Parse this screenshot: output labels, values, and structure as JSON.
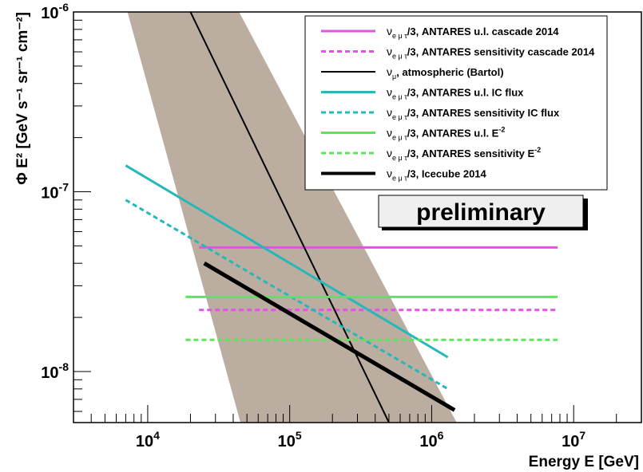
{
  "chart_data": {
    "type": "line",
    "xlabel": "Energy E [GeV]",
    "ylabel": "Φ E² [GeV s⁻¹ sr⁻¹ cm⁻²]",
    "xscale": "log",
    "yscale": "log",
    "xlim": [
      3000,
      30000000
    ],
    "ylim": [
      5.2e-09,
      1e-06
    ],
    "x_ticks": [
      {
        "value": 10000,
        "base": "10",
        "exp": "4"
      },
      {
        "value": 100000,
        "base": "10",
        "exp": "5"
      },
      {
        "value": 1000000,
        "base": "10",
        "exp": "6"
      },
      {
        "value": 10000000,
        "base": "10",
        "exp": "7"
      }
    ],
    "y_ticks": [
      {
        "value": 1e-08,
        "base": "10",
        "exp": "-8"
      },
      {
        "value": 1e-07,
        "base": "10",
        "exp": "-7"
      },
      {
        "value": 1e-06,
        "base": "10",
        "exp": "-6"
      }
    ],
    "grid": false,
    "legend_position": "top-right",
    "band": {
      "label": "atmospheric (Bartol) uncertainty band",
      "color": "#bcada1",
      "left_edge": [
        [
          7200,
          1e-06
        ],
        [
          45000,
          5.2e-09
        ]
      ],
      "right_edge": [
        [
          44000,
          1e-06
        ],
        [
          1500000,
          5.2e-09
        ]
      ]
    },
    "series": [
      {
        "legend_nu": "ν",
        "legend_sub": "e μ τ",
        "legend_rest": "/3, ANTARES u.l. cascade 2014",
        "legend_sup": "",
        "legend_after": "",
        "color": "#e650e6",
        "dash": "solid",
        "width": 3,
        "x": [
          23000,
          7700000
        ],
        "y": [
          4.9e-08,
          4.9e-08
        ]
      },
      {
        "legend_nu": "ν",
        "legend_sub": "e μ τ",
        "legend_rest": "/3, ANTARES sensitivity cascade 2014",
        "legend_sup": "",
        "legend_after": "",
        "color": "#e650e6",
        "dash": "dotted",
        "width": 3,
        "x": [
          23000,
          7700000
        ],
        "y": [
          2.2e-08,
          2.2e-08
        ]
      },
      {
        "legend_nu": "ν",
        "legend_sub": "μ",
        "legend_rest": ", atmospheric (Bartol)",
        "legend_sup": "",
        "legend_after": "",
        "color": "#000000",
        "dash": "solid",
        "width": 2,
        "x": [
          20000,
          500000
        ],
        "y": [
          1e-06,
          5.2e-09
        ]
      },
      {
        "legend_nu": "ν",
        "legend_sub": "e μ τ",
        "legend_rest": "/3, ANTARES u.l. IC flux",
        "legend_sup": "",
        "legend_after": "",
        "color": "#26b8b8",
        "dash": "solid",
        "width": 3,
        "x": [
          7000,
          1300000
        ],
        "y": [
          1.4e-07,
          1.2e-08
        ]
      },
      {
        "legend_nu": "ν",
        "legend_sub": "e μ τ",
        "legend_rest": "/3, ANTARES sensitivity IC flux",
        "legend_sup": "",
        "legend_after": "",
        "color": "#26b8b8",
        "dash": "dotted",
        "width": 3,
        "x": [
          7000,
          1300000
        ],
        "y": [
          9e-08,
          8e-09
        ]
      },
      {
        "legend_nu": "ν",
        "legend_sub": "e μ τ",
        "legend_rest": "/3, ANTARES u.l. E",
        "legend_sup": "-2",
        "legend_after": "",
        "color": "#5ae65a",
        "dash": "solid",
        "width": 3,
        "x": [
          18500,
          7700000
        ],
        "y": [
          2.6e-08,
          2.6e-08
        ]
      },
      {
        "legend_nu": "ν",
        "legend_sub": "e μ τ",
        "legend_rest": "/3, ANTARES sensitivity E",
        "legend_sup": "-2",
        "legend_after": "",
        "color": "#5ae65a",
        "dash": "dotted",
        "width": 3,
        "x": [
          18500,
          7700000
        ],
        "y": [
          1.5e-08,
          1.5e-08
        ]
      },
      {
        "legend_nu": "ν",
        "legend_sub": "e μ τ",
        "legend_rest": "/3, Icecube 2014",
        "legend_sup": "",
        "legend_after": "",
        "color": "#000000",
        "dash": "solid",
        "width": 5,
        "x": [
          25000,
          1450000
        ],
        "y": [
          4e-08,
          6.1e-09
        ]
      }
    ],
    "annotation": "preliminary"
  }
}
